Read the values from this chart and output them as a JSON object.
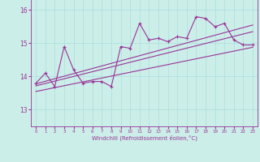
{
  "xlabel": "Windchill (Refroidissement éolien,°C)",
  "background_color": "#cceee8",
  "line_color": "#993399",
  "grid_color": "#aadddd",
  "x_data": [
    0,
    1,
    2,
    3,
    4,
    5,
    6,
    7,
    8,
    9,
    10,
    11,
    12,
    13,
    14,
    15,
    16,
    17,
    18,
    19,
    20,
    21,
    22,
    23
  ],
  "y_data": [
    13.8,
    14.1,
    13.7,
    14.9,
    14.2,
    13.8,
    13.85,
    13.85,
    13.7,
    14.9,
    14.85,
    15.6,
    15.1,
    15.15,
    15.05,
    15.2,
    15.15,
    15.8,
    15.75,
    15.5,
    15.6,
    15.1,
    14.95,
    14.95
  ],
  "ylim": [
    12.5,
    16.4
  ],
  "xlim": [
    -0.5,
    23.5
  ],
  "yticks": [
    13,
    14,
    15,
    16
  ],
  "xticks": [
    0,
    1,
    2,
    3,
    4,
    5,
    6,
    7,
    8,
    9,
    10,
    11,
    12,
    13,
    14,
    15,
    16,
    17,
    18,
    19,
    20,
    21,
    22,
    23
  ],
  "trend_lines": [
    {
      "x0": 0,
      "y0": 13.78,
      "x1": 23,
      "y1": 15.55
    },
    {
      "x0": 0,
      "y0": 13.72,
      "x1": 23,
      "y1": 15.35
    },
    {
      "x0": 0,
      "y0": 13.55,
      "x1": 23,
      "y1": 14.88
    }
  ]
}
